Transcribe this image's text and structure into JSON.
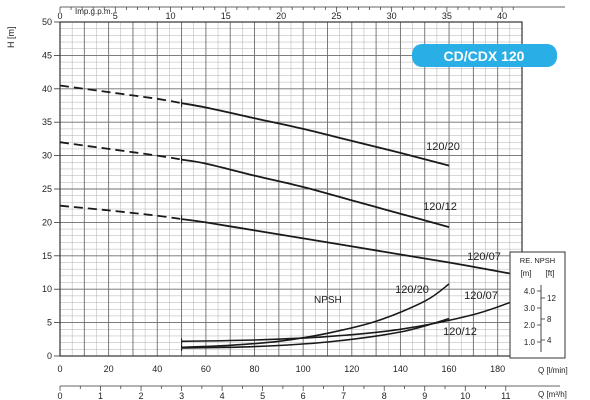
{
  "title": "CD/CDX 120",
  "title_color": "#29aee6",
  "h_axis_label": "H [m]",
  "top_axis_label": "Imp.g.p.m.",
  "x_axis_unit_lmin": "Q [l/min]",
  "x_axis_unit_m3h": "Q [m³/h]",
  "npsh_scale_header": "RE. NPSH",
  "npsh_scale_units": [
    "[m]",
    "[ft]"
  ],
  "npsh_label": "NPSH",
  "chart_data": {
    "type": "line",
    "title": "CD/CDX 120",
    "xlabel": "Q [l/min]",
    "ylabel": "H [m]",
    "xlim": [
      0,
      190
    ],
    "ylim": [
      0,
      50
    ],
    "grid": true,
    "x_ticks": [
      0,
      20,
      40,
      60,
      80,
      100,
      120,
      140,
      160,
      180
    ],
    "y_ticks": [
      0,
      5,
      10,
      15,
      20,
      25,
      30,
      35,
      40,
      45,
      50
    ],
    "top_ticks": [
      0,
      5,
      10,
      15,
      20,
      25,
      30,
      35,
      40
    ],
    "bottom_ticks": [
      0,
      1,
      2,
      3,
      4,
      5,
      6,
      7,
      8,
      9,
      10,
      11
    ],
    "series": [
      {
        "name": "120/20",
        "type": "head",
        "x": [
          0,
          20,
          40,
          60,
          80,
          100,
          120,
          140,
          160
        ],
        "y": [
          40.5,
          39.5,
          38.5,
          37.2,
          35.6,
          34,
          32.2,
          30.4,
          28.5
        ],
        "dashed_until": 50
      },
      {
        "name": "120/12",
        "type": "head",
        "x": [
          0,
          20,
          40,
          60,
          80,
          100,
          120,
          140,
          160
        ],
        "y": [
          32,
          31,
          30,
          28.8,
          27,
          25.3,
          23.3,
          21.3,
          19.3
        ],
        "dashed_until": 50
      },
      {
        "name": "120/07",
        "type": "head",
        "x": [
          0,
          20,
          40,
          60,
          80,
          100,
          120,
          140,
          160,
          180,
          190
        ],
        "y": [
          22.5,
          21.8,
          21,
          20,
          18.8,
          17.6,
          16.4,
          15.2,
          14,
          12.7,
          12
        ],
        "dashed_until": 50
      },
      {
        "name": "120/20",
        "type": "npsh",
        "x": [
          50,
          70,
          90,
          110,
          130,
          150,
          160
        ],
        "y": [
          1.3,
          1.6,
          2.2,
          3.4,
          5.2,
          8.2,
          10.8
        ]
      },
      {
        "name": "120/07",
        "type": "npsh",
        "x": [
          50,
          80,
          110,
          140,
          170,
          190
        ],
        "y": [
          2.2,
          2.4,
          2.9,
          4,
          6.2,
          8.7
        ]
      },
      {
        "name": "120/12",
        "type": "npsh",
        "x": [
          50,
          80,
          110,
          140,
          160
        ],
        "y": [
          1.2,
          1.4,
          2.1,
          3.6,
          5.6
        ]
      }
    ],
    "npsh_scale": {
      "m_ticks": [
        "4.0",
        "3.0",
        "2.0",
        "1.0"
      ],
      "ft_ticks": [
        "12",
        "8",
        "4"
      ]
    },
    "label_colors": {
      "line": "#1a1a1a",
      "grid": "#6f6f6f",
      "minor_grid": "#b0b0b0"
    }
  }
}
